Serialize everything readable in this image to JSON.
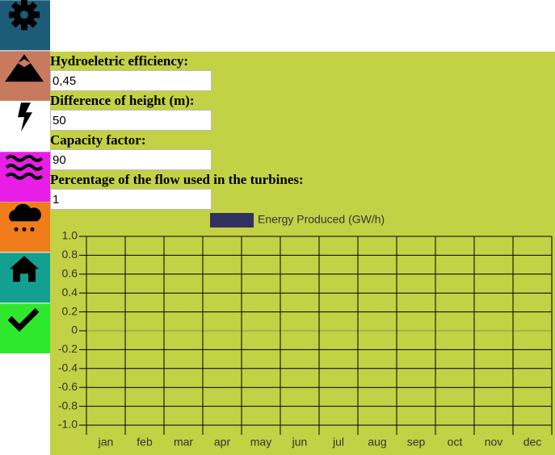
{
  "form": {
    "fields": [
      {
        "label": "Hydroeletric efficiency:",
        "value": "0,45"
      },
      {
        "label": "Difference of height (m):",
        "value": "50"
      },
      {
        "label": "Capacity factor:",
        "value": "90"
      },
      {
        "label": "Percentage of the flow used in the turbines:",
        "value": "1"
      }
    ]
  },
  "chart_data": {
    "type": "bar",
    "categories": [
      "jan",
      "feb",
      "mar",
      "apr",
      "may",
      "jun",
      "jul",
      "aug",
      "sep",
      "oct",
      "nov",
      "dec"
    ],
    "series": [
      {
        "name": "Energy Produced (GW/h)",
        "color": "#313161",
        "values": [
          null,
          null,
          null,
          null,
          null,
          null,
          null,
          null,
          null,
          null,
          null,
          null
        ]
      }
    ],
    "ylim": [
      -1,
      1
    ],
    "yticks": [
      {
        "value": 1,
        "label": "1.0"
      },
      0.8,
      0.6,
      0.4,
      0.2,
      0,
      -0.2,
      -0.4,
      -0.6,
      -0.8,
      {
        "value": -1,
        "label": "-1.0"
      }
    ],
    "grid": true,
    "legend": "top"
  }
}
